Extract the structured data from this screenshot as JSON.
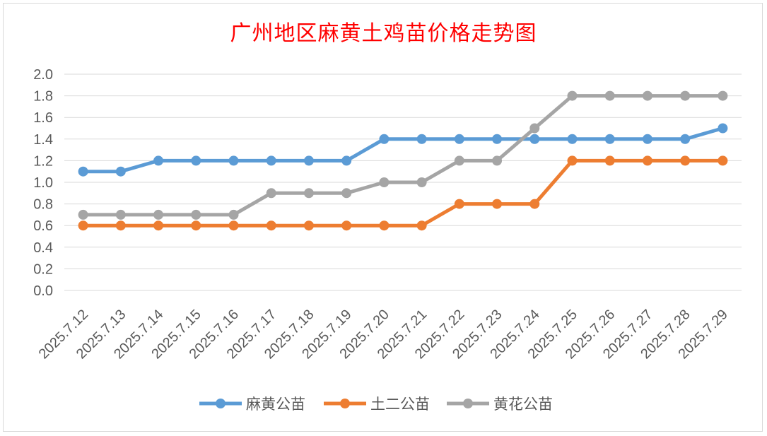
{
  "chart_data": {
    "type": "line",
    "title": "广州地区麻黄土鸡苗价格走势图",
    "xlabel": "",
    "ylabel": "",
    "ylim": [
      0,
      2.0
    ],
    "yticks": [
      "0.0",
      "0.2",
      "0.4",
      "0.6",
      "0.8",
      "1.0",
      "1.2",
      "1.4",
      "1.6",
      "1.8",
      "2.0"
    ],
    "grid": true,
    "legend_position": "bottom",
    "categories": [
      "2025.7.12",
      "2025.7.13",
      "2025.7.14",
      "2025.7.15",
      "2025.7.16",
      "2025.7.17",
      "2025.7.18",
      "2025.7.19",
      "2025.7.20",
      "2025.7.21",
      "2025.7.22",
      "2025.7.23",
      "2025.7.24",
      "2025.7.25",
      "2025.7.26",
      "2025.7.27",
      "2025.7.28",
      "2025.7.29"
    ],
    "series": [
      {
        "name": "麻黄公苗",
        "color": "#5b9bd5",
        "values": [
          1.1,
          1.1,
          1.2,
          1.2,
          1.2,
          1.2,
          1.2,
          1.2,
          1.4,
          1.4,
          1.4,
          1.4,
          1.4,
          1.4,
          1.4,
          1.4,
          1.4,
          1.5
        ]
      },
      {
        "name": "土二公苗",
        "color": "#ed7d31",
        "values": [
          0.6,
          0.6,
          0.6,
          0.6,
          0.6,
          0.6,
          0.6,
          0.6,
          0.6,
          0.6,
          0.8,
          0.8,
          0.8,
          1.2,
          1.2,
          1.2,
          1.2,
          1.2
        ]
      },
      {
        "name": "黄花公苗",
        "color": "#a5a5a5",
        "values": [
          0.7,
          0.7,
          0.7,
          0.7,
          0.7,
          0.9,
          0.9,
          0.9,
          1.0,
          1.0,
          1.2,
          1.2,
          1.5,
          1.8,
          1.8,
          1.8,
          1.8,
          1.8
        ]
      }
    ]
  }
}
